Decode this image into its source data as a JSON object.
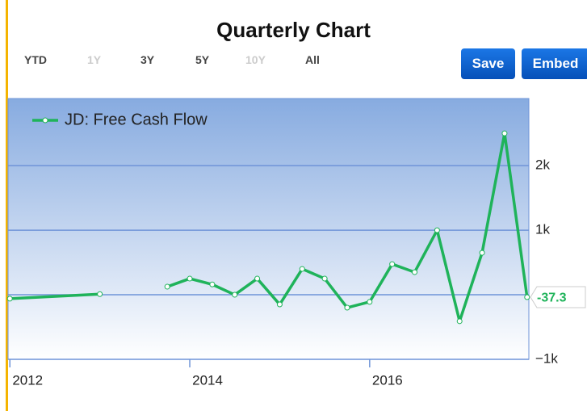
{
  "chart_data": {
    "type": "line",
    "title": "Quarterly Chart",
    "range_buttons": [
      {
        "label": "YTD",
        "enabled": true
      },
      {
        "label": "1Y",
        "enabled": false
      },
      {
        "label": "3Y",
        "enabled": true
      },
      {
        "label": "5Y",
        "enabled": true
      },
      {
        "label": "10Y",
        "enabled": false
      },
      {
        "label": "All",
        "enabled": true
      }
    ],
    "buttons": [
      "Save",
      "Embed"
    ],
    "x": [
      2012,
      2013,
      2013.25,
      2013.5,
      2013.75,
      2014,
      2014.25,
      2014.5,
      2014.75,
      2015,
      2015.25,
      2015.5,
      2015.75,
      2016,
      2016.25,
      2016.5,
      2016.75,
      2017,
      2017.25,
      2017.5,
      2017.75
    ],
    "series": [
      {
        "name": "JD: Free Cash Flow",
        "color": "#1fb35a",
        "values": [
          -60,
          10,
          null,
          null,
          125,
          250,
          160,
          0,
          250,
          -150,
          400,
          250,
          -200,
          -110,
          475,
          350,
          1000,
          -410,
          650,
          2500,
          -37.3
        ]
      }
    ],
    "xlim": [
      2011.98,
      2017.77
    ],
    "xticks": [
      2012,
      2014,
      2016
    ],
    "ylim": [
      -1000,
      3040
    ],
    "yticks": [
      {
        "value": -1000,
        "label": "−1k"
      },
      0,
      {
        "value": 1000,
        "label": "1k"
      },
      {
        "value": 2000,
        "label": "2k"
      }
    ],
    "grid": true,
    "legend": "top-left"
  }
}
